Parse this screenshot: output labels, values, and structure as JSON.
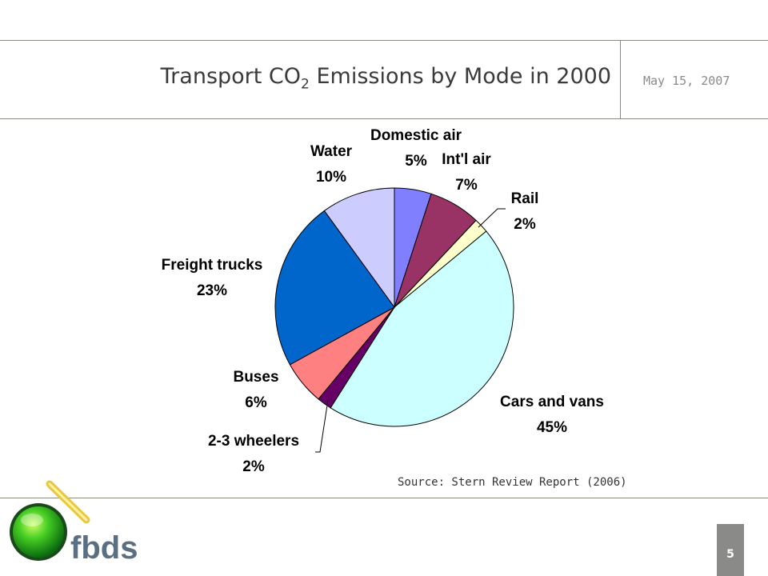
{
  "slide": {
    "title_main": "Transport CO",
    "title_sub": "2",
    "title_rest": " Emissions by Mode in 2000",
    "date": "May 15, 2007",
    "source": "Source: Stern Review Report (2006)",
    "page_number": "5",
    "logo_text": "fbds"
  },
  "chart_data": {
    "type": "pie",
    "title": "Transport CO2 Emissions by Mode in 2000",
    "start_angle_deg": 0,
    "direction": "clockwise",
    "slices": [
      {
        "label": "Domestic air",
        "value": 5,
        "pct_label": "5%",
        "color": "#8080ff"
      },
      {
        "label": "Int'l air",
        "value": 7,
        "pct_label": "7%",
        "color": "#993366"
      },
      {
        "label": "Rail",
        "value": 2,
        "pct_label": "2%",
        "color": "#ffffcc"
      },
      {
        "label": "Cars and vans",
        "value": 45,
        "pct_label": "45%",
        "color": "#ccffff"
      },
      {
        "label": "2-3 wheelers",
        "value": 2,
        "pct_label": "2%",
        "color": "#660066"
      },
      {
        "label": "Buses",
        "value": 6,
        "pct_label": "6%",
        "color": "#ff8080"
      },
      {
        "label": "Freight trucks",
        "value": 23,
        "pct_label": "23%",
        "color": "#0066cc"
      },
      {
        "label": "Water",
        "value": 10,
        "pct_label": "10%",
        "color": "#ccccff"
      }
    ]
  }
}
